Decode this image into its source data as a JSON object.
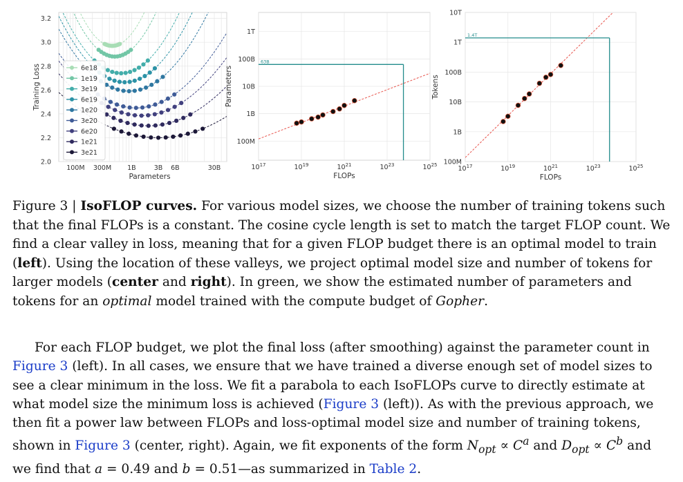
{
  "caption": {
    "prefix": "Figure 3 | ",
    "title": "IsoFLOP curves.",
    "t1": " For various model sizes, we choose the number of training tokens such that the final FLOPs is a constant. The cosine cycle length is set to match the target FLOP count. We find a clear valley in loss, meaning that for a given FLOP budget there is an optimal model to train (",
    "b1": "left",
    "t2": "). Using the location of these valleys, we project optimal model size and number of tokens for larger models (",
    "b2": "center",
    "t3": " and ",
    "b3": "right",
    "t4": "). In green, we show the estimated number of parameters and tokens for an ",
    "i1": "optimal",
    "t5": " model trained with the compute budget of ",
    "i2": "Gopher",
    "t6": "."
  },
  "paragraph": {
    "t1": "For each FLOP budget, we plot the final loss (after smoothing) against the parameter count in ",
    "r1": "Figure 3",
    "t2": " (left). In all cases, we ensure that we have trained a diverse enough set of model sizes to see a clear minimum in the loss. We fit a parabola to each IsoFLOPs curve to directly estimate at what model size the minimum loss is achieved (",
    "r2": "Figure 3",
    "t3": " (left)). As with the previous approach, we then fit a power law between FLOPs and loss-optimal model size and number of training tokens, shown in ",
    "r3": "Figure 3",
    "t4": " (center, right). Again, we fit exponents of the form ",
    "n_sym": "N",
    "n_sub": "opt",
    "prop1": " ∝ ",
    "c1": "C",
    "a_exp": "a",
    "and1": " and ",
    "d_sym": "D",
    "d_sub": "opt",
    "prop2": " ∝ ",
    "c2": "C",
    "b_exp": "b",
    "t5": " and we find that ",
    "a_var": "a",
    "eq1": " = 0.49 and ",
    "b_var": "b",
    "eq2": " = 0.51—as summarized in ",
    "r4": "Table 2",
    "t6": "."
  },
  "chart_data": [
    {
      "type": "line",
      "panel": "left",
      "xlabel": "Parameters",
      "ylabel": "Training Loss",
      "x_scale": "log",
      "xlim": [
        50000000,
        50000000000
      ],
      "ylim": [
        2.0,
        3.25
      ],
      "x_ticks": [
        {
          "v": 100000000,
          "label": "100M"
        },
        {
          "v": 300000000,
          "label": "300M"
        },
        {
          "v": 1000000000,
          "label": "1B"
        },
        {
          "v": 3000000000,
          "label": "3B"
        },
        {
          "v": 6000000000,
          "label": "6B"
        },
        {
          "v": 30000000000,
          "label": "30B"
        }
      ],
      "y_ticks": [
        2.0,
        2.2,
        2.4,
        2.6,
        2.8,
        3.0,
        3.2
      ],
      "grid": true,
      "legend_position": "left",
      "series": [
        {
          "name": "6e18",
          "color": "#a8ddb5",
          "min_x": 450000000,
          "min_y": 2.97,
          "k": 0.85
        },
        {
          "name": "1e19",
          "color": "#72c6a6",
          "min_x": 500000000,
          "min_y": 2.88,
          "k": 0.68
        },
        {
          "name": "3e19",
          "color": "#43adaa",
          "min_x": 650000000,
          "min_y": 2.74,
          "k": 0.47
        },
        {
          "name": "6e19",
          "color": "#2c92a6",
          "min_x": 750000000,
          "min_y": 2.665,
          "k": 0.4
        },
        {
          "name": "1e20",
          "color": "#2f77a1",
          "min_x": 900000000,
          "min_y": 2.59,
          "k": 0.33
        },
        {
          "name": "3e20",
          "color": "#3f5b97",
          "min_x": 1200000000,
          "min_y": 2.45,
          "k": 0.24
        },
        {
          "name": "6e20",
          "color": "#41407e",
          "min_x": 1500000000,
          "min_y": 2.385,
          "k": 0.21
        },
        {
          "name": "1e21",
          "color": "#2f2a5e",
          "min_x": 2000000000,
          "min_y": 2.3,
          "k": 0.17
        },
        {
          "name": "3e21",
          "color": "#1c1838",
          "min_x": 3000000000,
          "min_y": 2.2,
          "k": 0.12
        }
      ]
    },
    {
      "type": "scatter",
      "panel": "center",
      "xlabel": "FLOPs",
      "ylabel": "Parameters",
      "x_scale": "log",
      "y_scale": "log",
      "xlim": [
        1e+17,
        1e+25
      ],
      "ylim": [
        20000000,
        5000000000000.0
      ],
      "x_ticks": [
        {
          "v": 1e+17,
          "base": "10",
          "exp": "17"
        },
        {
          "v": 1e+19,
          "base": "10",
          "exp": "19"
        },
        {
          "v": 1e+21,
          "base": "10",
          "exp": "21"
        },
        {
          "v": 1e+23,
          "base": "10",
          "exp": "23"
        },
        {
          "v": 1e+25,
          "base": "10",
          "exp": "25"
        }
      ],
      "y_ticks": [
        {
          "v": 100000000,
          "label": "100M"
        },
        {
          "v": 1000000000,
          "label": "1B"
        },
        {
          "v": 10000000000,
          "label": "10B"
        },
        {
          "v": 100000000000,
          "label": "100B"
        },
        {
          "v": 1000000000000,
          "label": "1T"
        }
      ],
      "annotation": {
        "label": "63B",
        "x": 5.76e+23,
        "y": 63000000000,
        "color": "#228b8b"
      },
      "fit_color": "#e8544c",
      "points": [
        {
          "x": 6e+18,
          "y": 450000000
        },
        {
          "x": 1e+19,
          "y": 500000000
        },
        {
          "x": 3e+19,
          "y": 650000000
        },
        {
          "x": 6e+19,
          "y": 750000000
        },
        {
          "x": 1e+20,
          "y": 900000000
        },
        {
          "x": 3e+20,
          "y": 1200000000
        },
        {
          "x": 6e+20,
          "y": 1500000000
        },
        {
          "x": 1e+21,
          "y": 2000000000
        },
        {
          "x": 3e+21,
          "y": 3000000000
        }
      ]
    },
    {
      "type": "scatter",
      "panel": "right",
      "xlabel": "FLOPs",
      "ylabel": "Tokens",
      "x_scale": "log",
      "y_scale": "log",
      "xlim": [
        1e+17,
        1e+25
      ],
      "ylim": [
        100000000,
        10000000000000
      ],
      "x_ticks": [
        {
          "v": 1e+17,
          "base": "10",
          "exp": "17"
        },
        {
          "v": 1e+19,
          "base": "10",
          "exp": "19"
        },
        {
          "v": 1e+21,
          "base": "10",
          "exp": "21"
        },
        {
          "v": 1e+23,
          "base": "10",
          "exp": "23"
        },
        {
          "v": 1e+25,
          "base": "10",
          "exp": "25"
        }
      ],
      "y_ticks": [
        {
          "v": 100000000,
          "label": "100M"
        },
        {
          "v": 1000000000,
          "label": "1B"
        },
        {
          "v": 10000000000,
          "label": "10B"
        },
        {
          "v": 100000000000,
          "label": "100B"
        },
        {
          "v": 1000000000000,
          "label": "1T"
        },
        {
          "v": 10000000000000,
          "label": "10T"
        }
      ],
      "annotation": {
        "label": "1.4T",
        "x": 5.76e+23,
        "y": 1400000000000,
        "color": "#228b8b"
      },
      "fit_color": "#e8544c",
      "points": [
        {
          "x": 6e+18,
          "y": 2200000000
        },
        {
          "x": 1e+19,
          "y": 3300000000
        },
        {
          "x": 3e+19,
          "y": 7700000000
        },
        {
          "x": 6e+19,
          "y": 13000000000
        },
        {
          "x": 1e+20,
          "y": 18500000000
        },
        {
          "x": 3e+20,
          "y": 42000000000
        },
        {
          "x": 6e+20,
          "y": 67000000000
        },
        {
          "x": 1e+21,
          "y": 83000000000
        },
        {
          "x": 3e+21,
          "y": 167000000000
        }
      ]
    }
  ]
}
